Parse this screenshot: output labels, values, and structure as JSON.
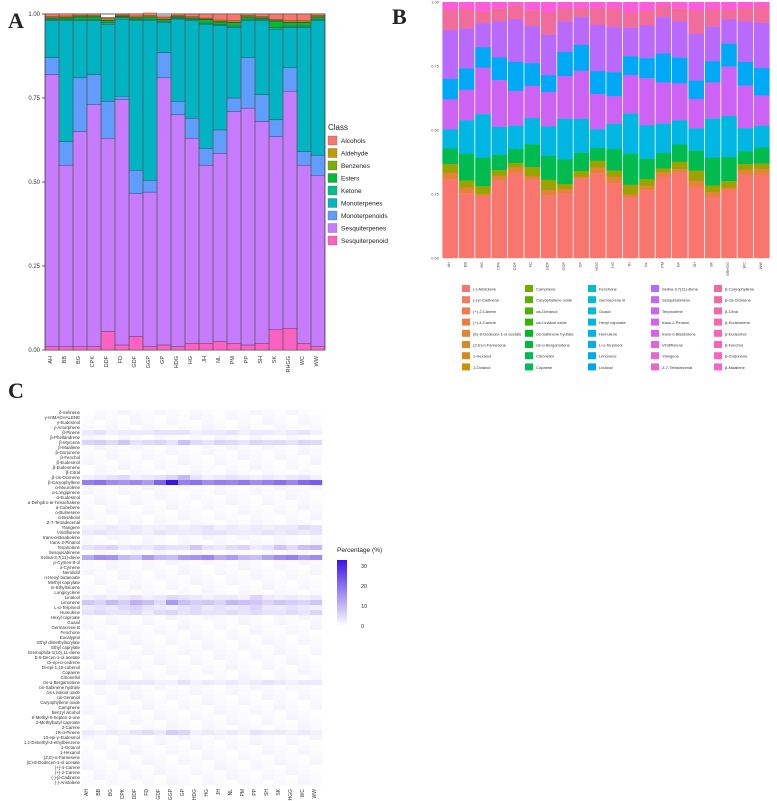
{
  "panel_letters": {
    "a": "A",
    "b": "B",
    "c": "C"
  },
  "samples": [
    "AH",
    "BB",
    "BG",
    "CPK",
    "DDF",
    "FD",
    "GDF",
    "GGP",
    "GP",
    "HDG",
    "HG",
    "JH",
    "NL",
    "PM",
    "PP",
    "SH",
    "SK",
    "SRHGG",
    "WC",
    "WW"
  ],
  "colors": {
    "Alcohols": "#f8766d",
    "Aldehyde": "#c49a00",
    "Benzenes": "#7cae00",
    "Esters": "#00ba38",
    "Ketone": "#00c08b",
    "Monoterpenes": "#00b4c4",
    "Monoterpenoids": "#619cff",
    "Sesquiterpenes": "#c77cff",
    "Sesquiterpenoid": "#ff61c3"
  },
  "chart_data": [
    {
      "type": "bar",
      "stacked": true,
      "panel": "A",
      "categories": [
        "AH",
        "BB",
        "BG",
        "CPK",
        "DDF",
        "FD",
        "GDF",
        "GGP",
        "GP",
        "HDG",
        "HG",
        "JH",
        "NL",
        "PM",
        "PP",
        "SH",
        "SK",
        "SRHGG",
        "WC",
        "WW"
      ],
      "ylim": [
        0,
        1.0
      ],
      "yticks": [
        "0.00",
        "0.25",
        "0.50",
        "0.75",
        "1.00"
      ],
      "legend_title": "Class",
      "legend_position": "right",
      "series": [
        {
          "name": "Sesquiterpenoid",
          "values": [
            0.01,
            0.01,
            0.01,
            0.01,
            0.055,
            0.015,
            0.04,
            0.01,
            0.015,
            0.01,
            0.02,
            0.02,
            0.025,
            0.02,
            0.015,
            0.02,
            0.06,
            0.065,
            0.02,
            0.01
          ]
        },
        {
          "name": "Sesquiterpenes",
          "values": [
            0.81,
            0.54,
            0.64,
            0.72,
            0.575,
            0.73,
            0.425,
            0.46,
            0.795,
            0.69,
            0.61,
            0.53,
            0.56,
            0.69,
            0.705,
            0.66,
            0.575,
            0.705,
            0.53,
            0.51
          ]
        },
        {
          "name": "Monoterpenoids",
          "values": [
            0.05,
            0.07,
            0.16,
            0.09,
            0.11,
            0.01,
            0.07,
            0.035,
            0.075,
            0.04,
            0.06,
            0.05,
            0.07,
            0.04,
            0.15,
            0.08,
            0.05,
            0.07,
            0.04,
            0.06
          ]
        },
        {
          "name": "Monoterpenes",
          "values": [
            0.11,
            0.36,
            0.17,
            0.16,
            0.23,
            0.23,
            0.445,
            0.475,
            0.09,
            0.245,
            0.29,
            0.37,
            0.31,
            0.21,
            0.11,
            0.22,
            0.27,
            0.12,
            0.37,
            0.4
          ]
        },
        {
          "name": "Ketone",
          "values": [
            0.003,
            0.004,
            0.004,
            0.004,
            0.004,
            0.004,
            0.004,
            0.004,
            0.004,
            0.003,
            0.003,
            0.003,
            0.004,
            0.004,
            0.004,
            0.003,
            0.004,
            0.004,
            0.004,
            0.004
          ]
        },
        {
          "name": "Esters",
          "values": [
            0.004,
            0.004,
            0.007,
            0.007,
            0.006,
            0.003,
            0.004,
            0.006,
            0.004,
            0.003,
            0.004,
            0.01,
            0.007,
            0.01,
            0.006,
            0.004,
            0.02,
            0.01,
            0.01,
            0.006
          ]
        },
        {
          "name": "Benzenes",
          "values": [
            0.002,
            0.002,
            0.002,
            0.002,
            0.002,
            0.002,
            0.002,
            0.002,
            0.002,
            0.002,
            0.002,
            0.002,
            0.002,
            0.002,
            0.002,
            0.002,
            0.002,
            0.002,
            0.002,
            0.002
          ]
        },
        {
          "name": "Aldehyde",
          "values": [
            0.003,
            0.004,
            0.003,
            0.003,
            0.004,
            0.003,
            0.004,
            0.004,
            0.004,
            0.003,
            0.003,
            0.003,
            0.004,
            0.004,
            0.004,
            0.003,
            0.003,
            0.004,
            0.004,
            0.004
          ]
        },
        {
          "name": "Alcohols",
          "values": [
            0.008,
            0.007,
            0.004,
            0.004,
            0.004,
            0.003,
            0.007,
            0.007,
            0.006,
            0.004,
            0.008,
            0.012,
            0.018,
            0.02,
            0.004,
            0.008,
            0.016,
            0.02,
            0.02,
            0.004
          ]
        }
      ]
    },
    {
      "type": "bar",
      "stacked": true,
      "panel": "B",
      "categories": [
        "AH",
        "BB",
        "BG",
        "CPK",
        "DDF",
        "FD",
        "GDF",
        "GGP",
        "GP",
        "HDG",
        "HG",
        "JH",
        "NL",
        "PM",
        "PP",
        "SH",
        "SK",
        "SRHGG",
        "WC",
        "WW"
      ],
      "ylim": [
        0,
        1.0
      ],
      "yticks": [
        "0.00",
        "0.25",
        "0.50",
        "0.75",
        "1.00"
      ],
      "legend_position": "bottom",
      "legend": [
        "(-)-Aristolene",
        "(-)-β-Cadinene",
        "(+)-2-Carene",
        "(+)-4-Carene",
        "(E)-8-Dodecen-1-ol acetate",
        "(Z,E)-α-Farnesene",
        "1-Hexanol",
        "1-Octanol",
        "1,2-Dimethyl-3-ethylbenzene",
        "10-epi-γ-Eudesmol",
        "1R-α-Pinene",
        "2-Carene",
        "2-Methylbutyl caproate",
        "6-Methyl-5-hepten-2-one",
        "Benzyl alcohol",
        "Camphene",
        "Caryophyllene oxide",
        "cis-Geraniol",
        "cis-Linalool oxide",
        "cis-Sabinene hydrate",
        "cis-α-Bergamotene",
        "Citronellol",
        "Copaene",
        "Di-epi-1,10-cubenol",
        "Di-epi-α-cedrene",
        "E-5-Decen-1-ol acetate",
        "Eremophila-1(10),11-diene",
        "Ethyl caprylate",
        "Ethyl dimethylacrylate",
        "Eucalyptol",
        "Fenchone",
        "Germacrene B",
        "Guaiol",
        "Hexyl caproate",
        "Humulene",
        "L-α-Terpineol",
        "Limonene",
        "Linalool",
        "Longicyclene",
        "m-Ethyltoluene",
        "Methyl caprylate",
        "n-Hexyl butanoate",
        "Nerolidol",
        "o-Cymene",
        "p-Cymen-8-ol",
        "Selina-3,7(11)-diene",
        "Sesquisabinene",
        "Terpinolene",
        "trans-2-Pinanol",
        "trans-α-Bisabolene",
        "Viridiflorene",
        "Ylangene",
        "Z-7-Tetradecenal",
        "α-Bisabolol",
        "α-Bulnesene",
        "α-Cubebene",
        "α-Dehydro-ar-himachalene",
        "α-Eudesmol",
        "α-Longipinene",
        "α-Muurolene",
        "β-Caryophyllene",
        "β-cis-Ocimene",
        "β-Citral",
        "β-Eudesmene",
        "β-Eudesmol",
        "β-Fenchol",
        "β-Gurjunene",
        "β-Maaliene",
        "β-Myrcene",
        "β-Phellandrene",
        "β-Pinene",
        "γ-Amorphene",
        "γ-Eudesmol",
        "γ-HIMACHALENE",
        "δ-Selinene"
      ],
      "legend_colors": [
        "#f8766d",
        "#f4795f",
        "#ef7b50",
        "#ea7f43",
        "#e38436",
        "#dc8828",
        "#d48c17",
        "#cc9000",
        "#c49500",
        "#bb9900",
        "#b19d00",
        "#a6a000",
        "#9aa300",
        "#8da600",
        "#7fa900",
        "#70ad00",
        "#5eb000",
        "#49b300",
        "#2db500",
        "#00b81f",
        "#00ba38",
        "#00bb4e",
        "#00bd60",
        "#00be71",
        "#00bf81",
        "#00bf8f",
        "#00c09d",
        "#00c0a9",
        "#00c0b5",
        "#00bfc1",
        "#00beca",
        "#00bcd4",
        "#00badc",
        "#00b7e4",
        "#00b3ea",
        "#00aef0",
        "#00a9f5",
        "#00a3fa",
        "#289cfd",
        "#5295ff",
        "#6a8dff",
        "#7e85ff",
        "#907dff",
        "#a076ff",
        "#ad6fff",
        "#b96afd",
        "#c466f9",
        "#cd63f4",
        "#d561ee",
        "#dc61e7",
        "#e262df",
        "#e763d6",
        "#ea65cc",
        "#ed67c1",
        "#ef69b6",
        "#f06bab",
        "#f16da0",
        "#f26f95",
        "#f3718a",
        "#f5737f",
        "#f06c9a",
        "#f36aa0",
        "#f568a8",
        "#f766af",
        "#f965b6",
        "#fa63bd",
        "#fb62c3",
        "#fc60c9",
        "#fd5fcf",
        "#fe5dd5",
        "#fe5cdb",
        "#ff5be1",
        "#ff5ae7",
        "#ff59ec",
        "#ff58f2"
      ]
    },
    {
      "type": "heatmap",
      "panel": "C",
      "x": [
        "AH",
        "BB",
        "BG",
        "CPK",
        "DDF",
        "FD",
        "GDF",
        "GGP",
        "GP",
        "HDG",
        "HG",
        "JH",
        "NL",
        "PM",
        "PP",
        "SH",
        "SK",
        "SRHGG",
        "WC",
        "WW"
      ],
      "y": [
        "δ-Selinene",
        "γ-HIMACHALENE",
        "γ-Eudesmol",
        "γ-Amorphene",
        "β-Pinene",
        "β-Phellandrene",
        "β-Myrcene",
        "β-Maaliene",
        "β-Gurjunene",
        "β-Fenchol",
        "β-Eudesmol",
        "β-Eudesmene",
        "β-Citral",
        "β-cis-Ocimene",
        "β-Caryophyllene",
        "α-Muurolene",
        "α-Longipinene",
        "α-Eudesmol",
        "α-Dehydro-ar-himachalene",
        "α-Cubebene",
        "α-Bulnesene",
        "α-Bisabolol",
        "Z-7-Tetradecenal",
        "Ylangene",
        "Viridiflorene",
        "trans-α-Bisabolene",
        "trans-2-Pinanol",
        "Terpinolene",
        "Sesquisabinene",
        "Selina-3,7(11)-diene",
        "p-Cymen-8-ol",
        "o-Cymene",
        "Nerolidol",
        "n-Hexyl butanoate",
        "Methyl caprylate",
        "m-Ethyltoluene",
        "Longicyclene",
        "Linalool",
        "Limonene",
        "L-α-Terpineol",
        "Humulene",
        "Hexyl caproate",
        "Guaiol",
        "Germacrene B",
        "Fenchone",
        "Eucalyptol",
        "Ethyl dimethylacrylate",
        "Ethyl caprylate",
        "Eremophila-1(10),11-diene",
        "E-5-Decen-1-ol acetate",
        "Di-epi-α-cedrene",
        "Di-epi-1,10-cubenol",
        "Copaene",
        "Citronellol",
        "cis-α-Bergamotene",
        "cis-Sabinene hydrate",
        "cis-Linalool oxide",
        "cis-Geraniol",
        "Caryophyllene oxide",
        "Camphene",
        "Benzyl alcohol",
        "6-Methyl-5-hepten-2-one",
        "2-Methylbutyl caproate",
        "2-Carene",
        "1R-α-Pinene",
        "10-epi-γ-Eudesmol",
        "1,2-Dimethyl-3-ethylbenzene",
        "1-Octanol",
        "1-Hexanol",
        "(Z,E)-α-Farnesene",
        "(E)-8-Dodecen-1-ol acetate",
        "(+)-4-Carene",
        "(+)-2-Carene",
        "(-)-β-Cadinene",
        "(-)-Aristolene"
      ],
      "strong_rows": {
        "β-Caryophyllene": [
          18,
          20,
          16,
          15,
          17,
          14,
          22,
          33,
          18,
          20,
          16,
          18,
          17,
          19,
          16,
          18,
          20,
          17,
          21,
          23
        ],
        "Selina-3,7(11)-diene": [
          12,
          16,
          15,
          10,
          8,
          14,
          10,
          9,
          14,
          15,
          17,
          12,
          14,
          10,
          9,
          13,
          16,
          18,
          14,
          16
        ],
        "Limonene": [
          8,
          6,
          10,
          7,
          11,
          9,
          5,
          14,
          9,
          7,
          8,
          6,
          10,
          9,
          8,
          6,
          8,
          7,
          6,
          8
        ],
        "β-Myrcene": [
          6,
          7,
          5,
          8,
          4,
          5,
          6,
          4,
          9,
          5,
          4,
          6,
          5,
          4,
          6,
          5,
          5,
          4,
          6,
          5
        ],
        "Terpinolene": [
          4,
          5,
          6,
          3,
          4,
          3,
          5,
          4,
          4,
          8,
          4,
          3,
          5,
          6,
          3,
          4,
          8,
          5,
          9,
          10
        ],
        "L-α-Terpineol": [
          3,
          4,
          3,
          5,
          6,
          4,
          3,
          2,
          4,
          5,
          3,
          4,
          3,
          4,
          6,
          3,
          3,
          4,
          3,
          2
        ],
        "β-cis-Ocimene": [
          2,
          3,
          4,
          5,
          2,
          3,
          4,
          6,
          10,
          4,
          2,
          3,
          4,
          3,
          2,
          3,
          2,
          3,
          4,
          2
        ],
        "Linalool": [
          2,
          3,
          2,
          3,
          4,
          2,
          3,
          5,
          4,
          3,
          2,
          3,
          3,
          2,
          6,
          3,
          2,
          3,
          2,
          3
        ],
        "Humulene": [
          4,
          5,
          4,
          4,
          5,
          3,
          5,
          6,
          4,
          5,
          4,
          4,
          5,
          4,
          5,
          4,
          4,
          5,
          4,
          6
        ],
        "1R-α-Pinene": [
          3,
          2,
          3,
          2,
          4,
          5,
          3,
          7,
          6,
          2,
          3,
          2,
          3,
          2,
          4,
          3,
          3,
          2,
          3,
          2
        ],
        "Viridiflorene": [
          3,
          4,
          3,
          3,
          3,
          2,
          4,
          3,
          3,
          3,
          4,
          4,
          3,
          3,
          3,
          4,
          3,
          4,
          3,
          4
        ],
        "β-Pinene": [
          3,
          4,
          2,
          3,
          3,
          3,
          4,
          4,
          4,
          2,
          3,
          3,
          4,
          2,
          3,
          3,
          2,
          3,
          4,
          2
        ],
        "cis-α-Bergamotene": [
          2,
          3,
          2,
          3,
          3,
          3,
          2,
          2,
          4,
          2,
          3,
          2,
          3,
          2,
          3,
          4,
          3,
          2,
          3,
          3
        ],
        "Ylangene": [
          2,
          2,
          3,
          2,
          3,
          2,
          2,
          3,
          2,
          3,
          4,
          2,
          3,
          2,
          3,
          2,
          3,
          3,
          5,
          4
        ]
      },
      "colorbar_title": "Percentage (%)",
      "colorbar_ticks": [
        "30",
        "20",
        "10",
        "0"
      ],
      "zlim": [
        0,
        33
      ]
    }
  ]
}
